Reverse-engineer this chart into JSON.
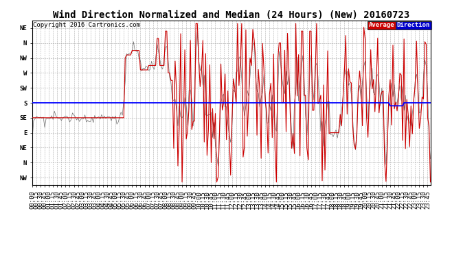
{
  "title": "Wind Direction Normalized and Median (24 Hours) (New) 20160723",
  "copyright": "Copyright 2016 Cartronics.com",
  "legend_label1": "Average",
  "legend_label2": "Direction",
  "legend_bg1": "#cc0000",
  "legend_bg2": "#0000cc",
  "legend_text1": "#ffffff",
  "legend_text2": "#ffffff",
  "ytick_labels": [
    "NW",
    "N",
    "NE",
    "E",
    "SE",
    "S",
    "SW",
    "W",
    "NW",
    "N",
    "NE"
  ],
  "ytick_values": [
    0,
    1,
    2,
    3,
    4,
    5,
    6,
    7,
    8,
    9,
    10
  ],
  "ylim": [
    -0.5,
    10.5
  ],
  "avg_line_y": 5.0,
  "avg_line_color": "#0000ff",
  "red_line_color": "#cc0000",
  "background_color": "#ffffff",
  "grid_color": "#aaaaaa",
  "title_fontsize": 10,
  "copyright_fontsize": 6.5,
  "tick_fontsize": 6.5,
  "n_points": 288
}
